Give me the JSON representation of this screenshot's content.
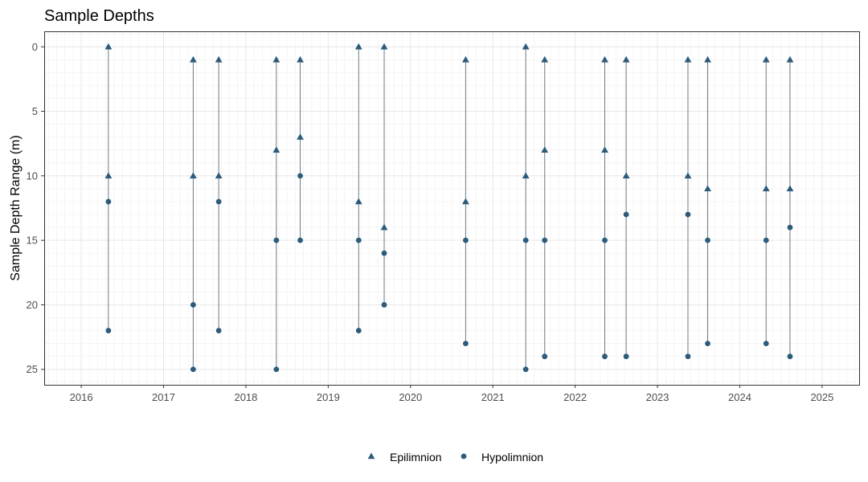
{
  "chart_data": {
    "type": "scatter",
    "title": "Sample Depths",
    "xlabel": "",
    "ylabel": "Sample Depth Range (m)",
    "xlim": [
      2015.55,
      2025.45
    ],
    "ylim": [
      26.2,
      -1.2
    ],
    "y_reversed": true,
    "xticks": [
      2016,
      2017,
      2018,
      2019,
      2020,
      2021,
      2022,
      2023,
      2024,
      2025
    ],
    "xtick_labels": [
      "2016",
      "2017",
      "2018",
      "2019",
      "2020",
      "2021",
      "2022",
      "2023",
      "2024",
      "2025"
    ],
    "yticks": [
      0,
      5,
      10,
      15,
      20,
      25
    ],
    "ytick_labels": [
      "0",
      "5",
      "10",
      "15",
      "20",
      "25"
    ],
    "grid": true,
    "legend_position": "bottom",
    "colors": {
      "marker": "#2d5b7a",
      "range_line": "#6c7a86",
      "panel_border": "#333333",
      "grid_major": "#e6e6e6",
      "grid_minor": "#f1f1f1"
    },
    "series": [
      {
        "name": "Epilimnion",
        "marker": "triangle",
        "points": [
          {
            "x": 2016.33,
            "y": 0
          },
          {
            "x": 2016.33,
            "y": 10
          },
          {
            "x": 2017.36,
            "y": 1
          },
          {
            "x": 2017.36,
            "y": 10
          },
          {
            "x": 2017.67,
            "y": 1
          },
          {
            "x": 2017.67,
            "y": 10
          },
          {
            "x": 2018.37,
            "y": 1
          },
          {
            "x": 2018.37,
            "y": 8
          },
          {
            "x": 2018.66,
            "y": 1
          },
          {
            "x": 2018.66,
            "y": 7
          },
          {
            "x": 2019.37,
            "y": 0
          },
          {
            "x": 2019.37,
            "y": 12
          },
          {
            "x": 2019.68,
            "y": 0
          },
          {
            "x": 2019.68,
            "y": 14
          },
          {
            "x": 2020.67,
            "y": 1
          },
          {
            "x": 2020.67,
            "y": 12
          },
          {
            "x": 2021.4,
            "y": 0
          },
          {
            "x": 2021.4,
            "y": 10
          },
          {
            "x": 2021.63,
            "y": 1
          },
          {
            "x": 2021.63,
            "y": 8
          },
          {
            "x": 2022.36,
            "y": 1
          },
          {
            "x": 2022.36,
            "y": 8
          },
          {
            "x": 2022.62,
            "y": 1
          },
          {
            "x": 2022.62,
            "y": 10
          },
          {
            "x": 2023.37,
            "y": 1
          },
          {
            "x": 2023.37,
            "y": 10
          },
          {
            "x": 2023.61,
            "y": 1
          },
          {
            "x": 2023.61,
            "y": 11
          },
          {
            "x": 2024.32,
            "y": 1
          },
          {
            "x": 2024.32,
            "y": 11
          },
          {
            "x": 2024.61,
            "y": 1
          },
          {
            "x": 2024.61,
            "y": 11
          }
        ]
      },
      {
        "name": "Hypolimnion",
        "marker": "circle",
        "points": [
          {
            "x": 2016.33,
            "y": 12
          },
          {
            "x": 2016.33,
            "y": 22
          },
          {
            "x": 2017.36,
            "y": 20
          },
          {
            "x": 2017.36,
            "y": 25
          },
          {
            "x": 2017.67,
            "y": 12
          },
          {
            "x": 2017.67,
            "y": 22
          },
          {
            "x": 2018.37,
            "y": 15
          },
          {
            "x": 2018.37,
            "y": 25
          },
          {
            "x": 2018.66,
            "y": 10
          },
          {
            "x": 2018.66,
            "y": 15
          },
          {
            "x": 2019.37,
            "y": 15
          },
          {
            "x": 2019.37,
            "y": 22
          },
          {
            "x": 2019.68,
            "y": 16
          },
          {
            "x": 2019.68,
            "y": 20
          },
          {
            "x": 2020.67,
            "y": 15
          },
          {
            "x": 2020.67,
            "y": 23
          },
          {
            "x": 2021.4,
            "y": 15
          },
          {
            "x": 2021.4,
            "y": 25
          },
          {
            "x": 2021.63,
            "y": 15
          },
          {
            "x": 2021.63,
            "y": 24
          },
          {
            "x": 2022.36,
            "y": 15
          },
          {
            "x": 2022.36,
            "y": 24
          },
          {
            "x": 2022.62,
            "y": 13
          },
          {
            "x": 2022.62,
            "y": 24
          },
          {
            "x": 2023.37,
            "y": 13
          },
          {
            "x": 2023.37,
            "y": 24
          },
          {
            "x": 2023.61,
            "y": 15
          },
          {
            "x": 2023.61,
            "y": 23
          },
          {
            "x": 2024.32,
            "y": 15
          },
          {
            "x": 2024.32,
            "y": 23
          },
          {
            "x": 2024.61,
            "y": 14
          },
          {
            "x": 2024.61,
            "y": 24
          }
        ]
      }
    ],
    "sampling_events": [
      {
        "x": 2016.33,
        "min": 0,
        "max": 22
      },
      {
        "x": 2017.36,
        "min": 1,
        "max": 25
      },
      {
        "x": 2017.67,
        "min": 1,
        "max": 22
      },
      {
        "x": 2018.37,
        "min": 1,
        "max": 25
      },
      {
        "x": 2018.66,
        "min": 1,
        "max": 15
      },
      {
        "x": 2019.37,
        "min": 0,
        "max": 22
      },
      {
        "x": 2019.68,
        "min": 0,
        "max": 20
      },
      {
        "x": 2020.67,
        "min": 1,
        "max": 23
      },
      {
        "x": 2021.4,
        "min": 0,
        "max": 25
      },
      {
        "x": 2021.63,
        "min": 1,
        "max": 24
      },
      {
        "x": 2022.36,
        "min": 1,
        "max": 24
      },
      {
        "x": 2022.62,
        "min": 1,
        "max": 24
      },
      {
        "x": 2023.37,
        "min": 1,
        "max": 24
      },
      {
        "x": 2023.61,
        "min": 1,
        "max": 23
      },
      {
        "x": 2024.32,
        "min": 1,
        "max": 23
      },
      {
        "x": 2024.61,
        "min": 1,
        "max": 24
      }
    ]
  }
}
